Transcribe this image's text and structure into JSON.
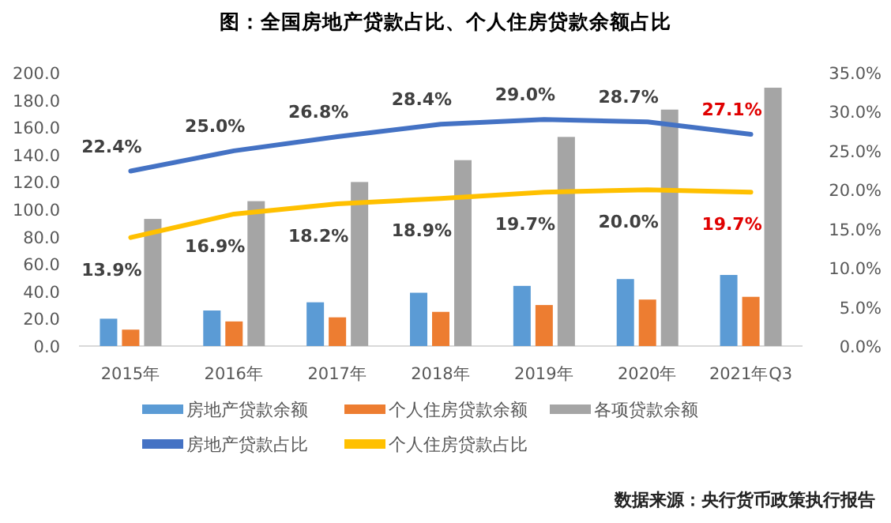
{
  "chart_data": {
    "type": "bar",
    "title": "图：全国房地产贷款占比、个人住房贷款余额占比",
    "categories": [
      "2015年",
      "2016年",
      "2017年",
      "2018年",
      "2019年",
      "2020年",
      "2021年Q3"
    ],
    "series": [
      {
        "name": "房地产贷款余额",
        "color": "#5b9bd5",
        "values": [
          20,
          26,
          32,
          39,
          44,
          49,
          52
        ]
      },
      {
        "name": "个人住房贷款余额",
        "color": "#ed7d31",
        "values": [
          12,
          18,
          21,
          25,
          30,
          34,
          36
        ]
      },
      {
        "name": "各项贷款余额",
        "color": "#a5a5a5",
        "values": [
          93,
          106,
          120,
          136,
          153,
          173,
          189
        ]
      },
      {
        "name": "房地产贷款占比",
        "type": "line",
        "axis": "y2",
        "color": "#4472c4",
        "values": [
          22.4,
          25.0,
          26.8,
          28.4,
          29.0,
          28.7,
          27.1
        ],
        "value_labels": [
          "22.4%",
          "25.0%",
          "26.8%",
          "28.4%",
          "29.0%",
          "28.7%",
          "27.1%"
        ]
      },
      {
        "name": "个人住房贷款占比",
        "type": "line",
        "axis": "y2",
        "color": "#ffc000",
        "values": [
          13.9,
          16.9,
          18.2,
          18.9,
          19.7,
          20.0,
          19.7
        ],
        "value_labels": [
          "13.9%",
          "16.9%",
          "18.2%",
          "18.9%",
          "19.7%",
          "20.0%",
          "19.7%"
        ]
      }
    ],
    "ylim": [
      0,
      200
    ],
    "yticks": [
      {
        "value": 0,
        "label": "0.0"
      },
      {
        "value": 20,
        "label": "20.0"
      },
      {
        "value": 40,
        "label": "40.0"
      },
      {
        "value": 60,
        "label": "60.0"
      },
      {
        "value": 80,
        "label": "80.0"
      },
      {
        "value": 100,
        "label": "100.0"
      },
      {
        "value": 120,
        "label": "120.0"
      },
      {
        "value": 140,
        "label": "140.0"
      },
      {
        "value": 160,
        "label": "160.0"
      },
      {
        "value": 180,
        "label": "180.0"
      },
      {
        "value": 200,
        "label": "200.0"
      }
    ],
    "y2lim": [
      0,
      35
    ],
    "y2ticks": [
      {
        "value": 0,
        "label": "0.0%"
      },
      {
        "value": 5,
        "label": "5.0%"
      },
      {
        "value": 10,
        "label": "10.0%"
      },
      {
        "value": 15,
        "label": "15.0%"
      },
      {
        "value": 20,
        "label": "20.0%"
      },
      {
        "value": 25,
        "label": "25.0%"
      },
      {
        "value": 30,
        "label": "30.0%"
      },
      {
        "value": 35,
        "label": "35.0%"
      }
    ],
    "legend": "bottom",
    "grid": false,
    "annotations": [
      "数据来源：央行货币政策执行报告"
    ]
  }
}
